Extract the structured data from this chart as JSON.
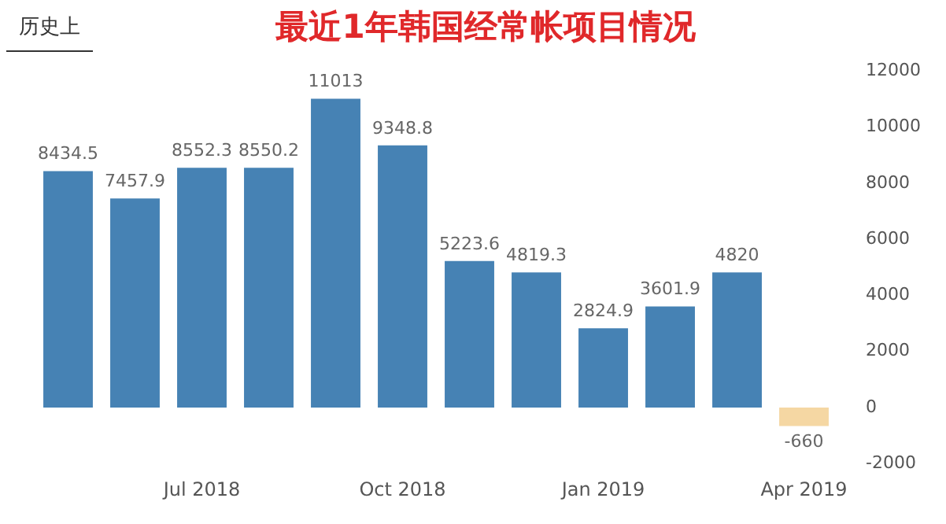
{
  "chart_data": {
    "type": "bar",
    "title": "最近1年韩国经常帐项目情况",
    "annotations": [
      "历史上"
    ],
    "categories": [
      null,
      null,
      "Jul 2018",
      null,
      null,
      "Oct 2018",
      null,
      null,
      "Jan 2019",
      null,
      null,
      "Apr 2019"
    ],
    "values": [
      8434.5,
      7457.9,
      8552.3,
      8550.2,
      11013,
      9348.8,
      5223.6,
      4819.3,
      2824.9,
      3601.9,
      4820,
      -660
    ],
    "colors": [
      "#4682b4",
      "#4682b4",
      "#4682b4",
      "#4682b4",
      "#4682b4",
      "#4682b4",
      "#4682b4",
      "#4682b4",
      "#4682b4",
      "#4682b4",
      "#4682b4",
      "#f5d7a3"
    ],
    "ylim": [
      -2000,
      12000
    ],
    "yticks": [
      -2000,
      0,
      2000,
      4000,
      6000,
      8000,
      10000,
      12000
    ],
    "data_labels": true,
    "grid": false,
    "legend": false
  }
}
